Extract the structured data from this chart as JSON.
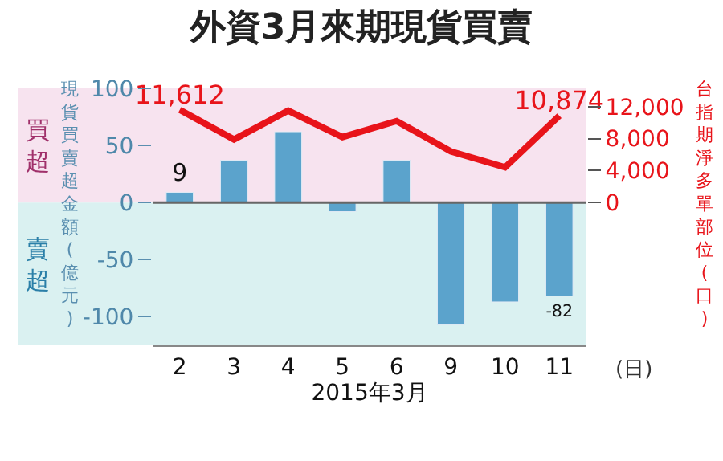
{
  "chart_data": {
    "type": "bar",
    "title": "外資3月來期現貨買賣",
    "xlabel": "2015年3月",
    "ylabel": "現貨買賣超金額(億元)",
    "y2label": "台指期淨多單部位(口)",
    "categories": [
      "2",
      "3",
      "4",
      "5",
      "6",
      "9",
      "10",
      "11"
    ],
    "series": [
      {
        "color": "#5ba3cc",
        "values": [
          9,
          37,
          62,
          -8,
          37,
          -107,
          -87,
          -82
        ],
        "value_labels": [
          "9",
          null,
          null,
          null,
          null,
          null,
          null,
          "-82"
        ]
      },
      {
        "type": "line",
        "axis": "y2",
        "color": "#e8141a",
        "values": [
          11612,
          7900,
          11500,
          8200,
          10200,
          6400,
          4400,
          10874
        ],
        "value_labels": [
          "11,612",
          null,
          null,
          null,
          null,
          null,
          null,
          "10,874"
        ]
      }
    ],
    "ylim": [
      -125,
      100
    ],
    "yticks": [
      -100,
      -50,
      0,
      50,
      100
    ],
    "y2lim": [
      -17900,
      14300
    ],
    "y2ticks": [
      0,
      {
        "value": 4000,
        "label": "4,000"
      },
      {
        "value": 8000,
        "label": "8,000"
      },
      {
        "value": 12000,
        "label": "12,000"
      }
    ],
    "ref_lines": [
      {
        "axis": "y",
        "value": 0,
        "color": "#666666"
      }
    ],
    "bands": [
      {
        "axis": "y",
        "from": 0,
        "to": 100,
        "label": "買超",
        "color": "#f7e3ef"
      },
      {
        "axis": "y",
        "from": -125,
        "to": 0,
        "label": "賣超",
        "color": "#daf1f1"
      }
    ],
    "annotations": [
      "(日)"
    ],
    "grid": false,
    "legend": false,
    "marker": "none",
    "line_style": "solid"
  }
}
